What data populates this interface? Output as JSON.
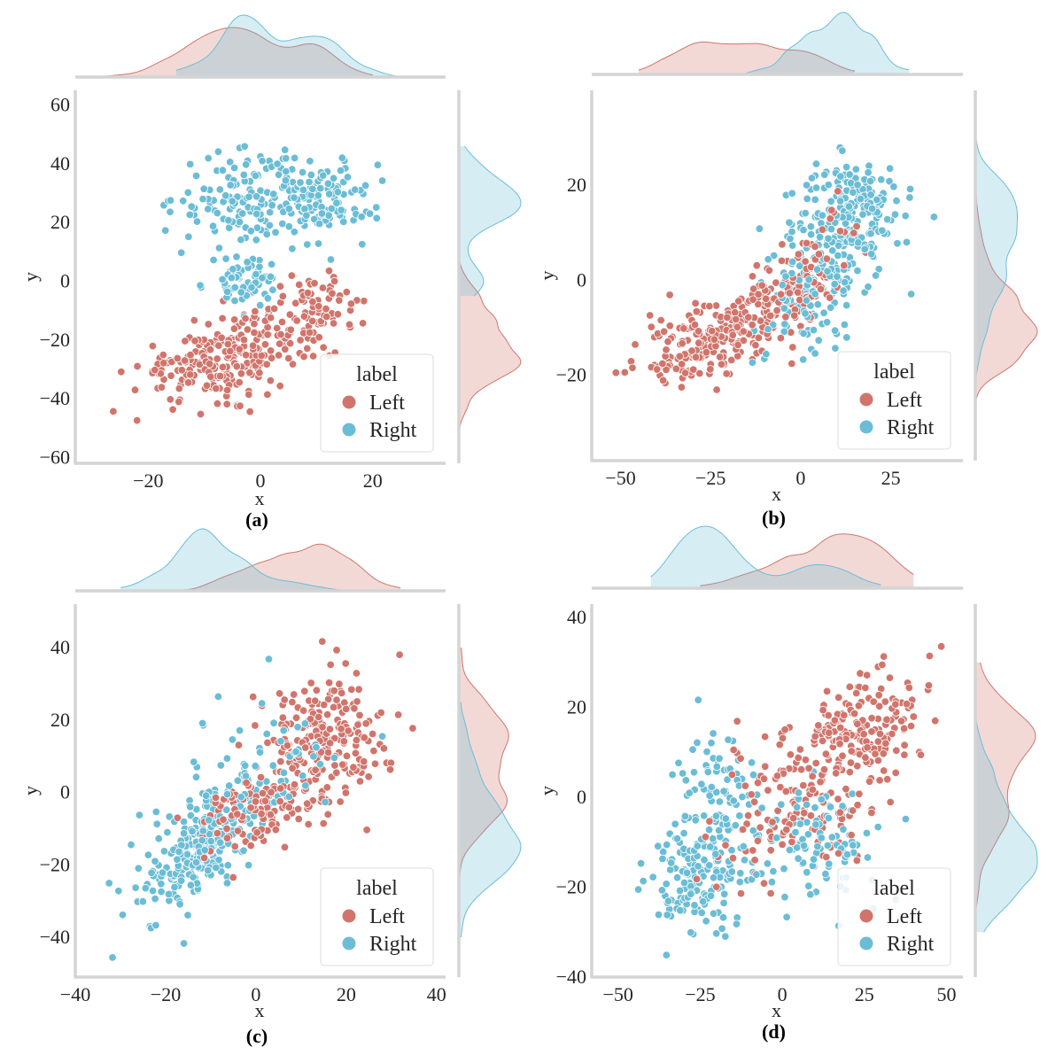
{
  "colors": {
    "left": "#d1756c",
    "right": "#6bbdd6",
    "frame": "#d4d4d4"
  },
  "chart_data": [
    {
      "type": "scatter",
      "caption": "(a)",
      "xlabel": "x",
      "ylabel": "y",
      "xlim": [
        -33,
        33
      ],
      "ylim": [
        -62,
        65
      ],
      "xticks": [
        -20,
        0,
        20
      ],
      "xtick_labels": [
        "−20",
        "0",
        "20"
      ],
      "yticks": [
        -60,
        -40,
        -20,
        0,
        20,
        40,
        60
      ],
      "ytick_labels": [
        "−60",
        "−40",
        "−20",
        "0",
        "20",
        "40",
        "60"
      ],
      "legend": {
        "title": "label",
        "entries": [
          "Left",
          "Right"
        ],
        "placement": "lower-right"
      },
      "series": [
        {
          "name": "Left",
          "n": 330,
          "clusters": [
            {
              "x": -8,
              "y": -28,
              "sx": 7,
              "sy": 6,
              "rho": 0.3,
              "w": 0.55
            },
            {
              "x": 3,
              "y": -18,
              "sx": 7,
              "sy": 8,
              "rho": 0.4,
              "w": 0.35
            },
            {
              "x": 12,
              "y": -5,
              "sx": 5,
              "sy": 5,
              "rho": 0.3,
              "w": 0.1
            }
          ],
          "kde_x": [
            -33,
            20
          ],
          "kde_y": [
            -55,
            25
          ]
        },
        {
          "name": "Right",
          "n": 330,
          "clusters": [
            {
              "x": -3,
              "y": 28,
              "sx": 6,
              "sy": 8,
              "rho": 0.0,
              "w": 0.4
            },
            {
              "x": 10,
              "y": 28,
              "sx": 5,
              "sy": 7,
              "rho": 0.0,
              "w": 0.4
            },
            {
              "x": -3,
              "y": 0,
              "sx": 3,
              "sy": 4,
              "rho": 0.0,
              "w": 0.2
            }
          ],
          "kde_x": [
            -15,
            25
          ],
          "kde_y": [
            -5,
            46
          ]
        }
      ]
    },
    {
      "type": "scatter",
      "caption": "(b)",
      "xlabel": "x",
      "ylabel": "y",
      "xlim": [
        -58,
        45
      ],
      "ylim": [
        -38,
        40
      ],
      "xticks": [
        -50,
        -25,
        0,
        25
      ],
      "xtick_labels": [
        "−50",
        "−25",
        "0",
        "25"
      ],
      "yticks": [
        -20,
        0,
        20
      ],
      "ytick_labels": [
        "−20",
        "0",
        "20"
      ],
      "legend": {
        "title": "label",
        "entries": [
          "Left",
          "Right"
        ],
        "placement": "lower-right"
      },
      "series": [
        {
          "name": "Left",
          "n": 330,
          "clusters": [
            {
              "x": -28,
              "y": -13,
              "sx": 8,
              "sy": 4,
              "rho": 0.4,
              "w": 0.45
            },
            {
              "x": -10,
              "y": -6,
              "sx": 9,
              "sy": 6,
              "rho": 0.6,
              "w": 0.45
            },
            {
              "x": 5,
              "y": 4,
              "sx": 6,
              "sy": 6,
              "rho": 0.3,
              "w": 0.1
            }
          ],
          "kde_x": [
            -45,
            15
          ],
          "kde_y": [
            -25,
            20
          ]
        },
        {
          "name": "Right",
          "n": 330,
          "clusters": [
            {
              "x": 15,
              "y": 15,
              "sx": 7,
              "sy": 5,
              "rho": 0.0,
              "w": 0.5
            },
            {
              "x": 5,
              "y": 0,
              "sx": 8,
              "sy": 8,
              "rho": 0.3,
              "w": 0.5
            }
          ],
          "kde_x": [
            -25,
            30
          ],
          "kde_y": [
            -22,
            32
          ]
        }
      ]
    },
    {
      "type": "scatter",
      "caption": "(c)",
      "xlabel": "x",
      "ylabel": "y",
      "xlim": [
        -40,
        42
      ],
      "ylim": [
        -51,
        52
      ],
      "xticks": [
        -40,
        -20,
        0,
        20,
        40
      ],
      "xtick_labels": [
        "−40",
        "−20",
        "0",
        "20",
        "40"
      ],
      "yticks": [
        -40,
        -20,
        0,
        20,
        40
      ],
      "ytick_labels": [
        "−40",
        "−20",
        "0",
        "20",
        "40"
      ],
      "legend": {
        "title": "label",
        "entries": [
          "Left",
          "Right"
        ],
        "placement": "lower-right"
      },
      "series": [
        {
          "name": "Left",
          "n": 330,
          "clusters": [
            {
              "x": 15,
              "y": 15,
              "sx": 7,
              "sy": 9,
              "rho": 0.1,
              "w": 0.65
            },
            {
              "x": 2,
              "y": -5,
              "sx": 7,
              "sy": 6,
              "rho": 0.4,
              "w": 0.35
            }
          ],
          "kde_x": [
            -28,
            32
          ],
          "kde_y": [
            -35,
            40
          ]
        },
        {
          "name": "Right",
          "n": 330,
          "clusters": [
            {
              "x": -12,
              "y": -15,
              "sx": 7,
              "sy": 9,
              "rho": 0.6,
              "w": 0.85
            },
            {
              "x": 5,
              "y": 10,
              "sx": 8,
              "sy": 8,
              "rho": 0.0,
              "w": 0.15
            }
          ],
          "kde_x": [
            -30,
            25
          ],
          "kde_y": [
            -40,
            25
          ]
        }
      ]
    },
    {
      "type": "scatter",
      "caption": "(d)",
      "xlabel": "x",
      "ylabel": "y",
      "xlim": [
        -58,
        55
      ],
      "ylim": [
        -40,
        43
      ],
      "xticks": [
        -50,
        -25,
        0,
        25,
        50
      ],
      "xtick_labels": [
        "−50",
        "−25",
        "0",
        "25",
        "50"
      ],
      "yticks": [
        -40,
        -20,
        0,
        20,
        40
      ],
      "ytick_labels": [
        "−40",
        "−20",
        "0",
        "20",
        "40"
      ],
      "legend": {
        "title": "label",
        "entries": [
          "Left",
          "Right"
        ],
        "placement": "lower-right"
      },
      "series": [
        {
          "name": "Left",
          "n": 330,
          "clusters": [
            {
              "x": 25,
              "y": 15,
              "sx": 8,
              "sy": 7,
              "rho": 0.3,
              "w": 0.5
            },
            {
              "x": 5,
              "y": 0,
              "sx": 12,
              "sy": 9,
              "rho": 0.3,
              "w": 0.5
            }
          ],
          "kde_x": [
            -25,
            40
          ],
          "kde_y": [
            -25,
            30
          ]
        },
        {
          "name": "Right",
          "n": 330,
          "clusters": [
            {
              "x": -25,
              "y": -15,
              "sx": 8,
              "sy": 7,
              "rho": 0.2,
              "w": 0.55
            },
            {
              "x": -20,
              "y": 5,
              "sx": 6,
              "sy": 6,
              "rho": 0.0,
              "w": 0.15
            },
            {
              "x": 10,
              "y": -10,
              "sx": 10,
              "sy": 7,
              "rho": 0.2,
              "w": 0.3
            }
          ],
          "kde_x": [
            -40,
            30
          ],
          "kde_y": [
            -30,
            25
          ]
        }
      ]
    }
  ]
}
